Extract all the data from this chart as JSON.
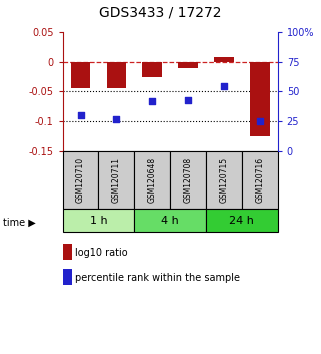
{
  "title": "GDS3433 / 17272",
  "samples": [
    "GSM120710",
    "GSM120711",
    "GSM120648",
    "GSM120708",
    "GSM120715",
    "GSM120716"
  ],
  "log10_ratio": [
    -0.044,
    -0.044,
    -0.025,
    -0.01,
    0.008,
    -0.125
  ],
  "percentile_rank": [
    30,
    27,
    42,
    43,
    55,
    25
  ],
  "ylim_left": [
    -0.15,
    0.05
  ],
  "ylim_right": [
    0,
    100
  ],
  "yticks_left": [
    0.05,
    0,
    -0.05,
    -0.1,
    -0.15
  ],
  "yticks_right": [
    100,
    75,
    50,
    25,
    0
  ],
  "bar_color": "#aa1111",
  "dot_color": "#2222cc",
  "dashed_line_color": "#cc2222",
  "dotted_line_y": [
    -0.05,
    -0.1
  ],
  "groups": [
    {
      "label": "1 h",
      "indices": [
        0,
        1
      ],
      "color": "#bbeeaa"
    },
    {
      "label": "4 h",
      "indices": [
        2,
        3
      ],
      "color": "#66dd66"
    },
    {
      "label": "24 h",
      "indices": [
        4,
        5
      ],
      "color": "#33cc33"
    }
  ],
  "time_label": "time",
  "legend_bar_label": "log10 ratio",
  "legend_dot_label": "percentile rank within the sample",
  "background_color": "#ffffff",
  "plot_bg_color": "#ffffff",
  "label_area_color": "#cccccc",
  "title_fontsize": 10,
  "tick_fontsize": 7,
  "sample_fontsize": 5.5,
  "time_fontsize": 8,
  "legend_fontsize": 7
}
